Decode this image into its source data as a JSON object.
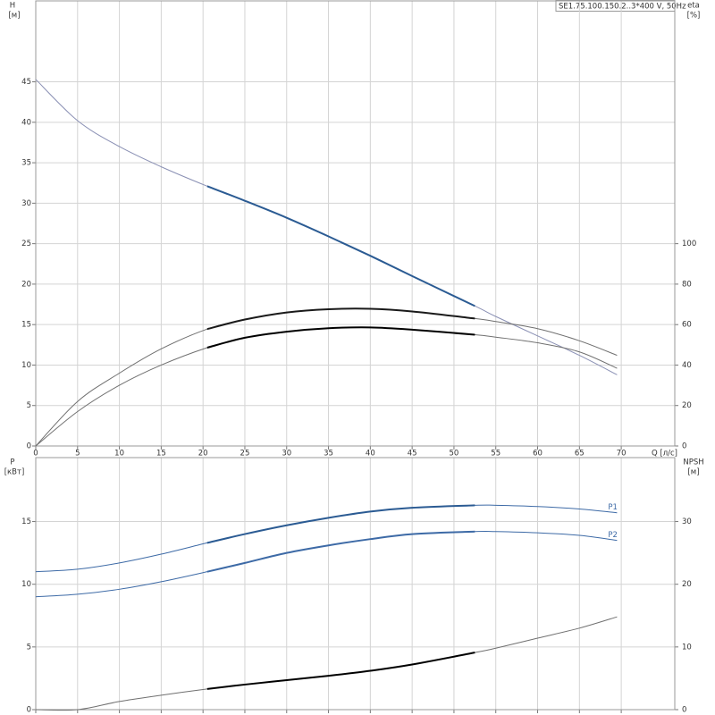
{
  "header": {
    "model": "SE1.75.100.150.2..3*400 V, 50Hz"
  },
  "chart_data": [
    {
      "type": "line",
      "y_label": "H",
      "y_unit": "[м]",
      "y2_label": "eta",
      "y2_unit": "[%]",
      "x_label": "Q [л/с]",
      "x": [
        0,
        5,
        10,
        15,
        20.5,
        25,
        30,
        35,
        40,
        45,
        52.5,
        55,
        60,
        65,
        69.5
      ],
      "xlim": [
        0,
        76.4
      ],
      "xticks": [
        0,
        5,
        10,
        15,
        20,
        25,
        30,
        35,
        40,
        45,
        50,
        55,
        60,
        65,
        70
      ],
      "ylim": [
        0,
        55
      ],
      "yticks": [
        0,
        5,
        10,
        15,
        20,
        25,
        30,
        35,
        40,
        45
      ],
      "y2lim": [
        0,
        220
      ],
      "y2ticks": [
        0,
        20,
        40,
        60,
        80,
        100
      ],
      "grid": true,
      "highlight_xlim": [
        20.5,
        52.5
      ],
      "series": [
        {
          "color": "#8a90b4",
          "highlight_color": "#2b5b93",
          "axis": "y",
          "values": [
            45.3,
            40.2,
            37,
            34.5,
            32.1,
            30.3,
            28.2,
            25.9,
            23.5,
            21,
            17.3,
            16,
            13.6,
            11.2,
            8.8
          ]
        },
        {
          "color": "#707070",
          "highlight_color": "#1a1a1a",
          "axis": "y2",
          "values": [
            0,
            22,
            36,
            48,
            57.8,
            62.5,
            66,
            67.6,
            67.8,
            66.5,
            63,
            61.5,
            58,
            52,
            44.8
          ]
        },
        {
          "color": "#707070",
          "highlight_color": "#000000",
          "axis": "y2",
          "values": [
            0,
            17,
            30,
            40,
            48.6,
            53.5,
            56.5,
            58.2,
            58.6,
            57.5,
            55,
            53.8,
            51,
            46.5,
            38.4
          ]
        }
      ]
    },
    {
      "type": "line",
      "y_label": "P",
      "y_unit": "[кВт]",
      "y2_label": "NPSH",
      "y2_unit": "[м]",
      "x": [
        0,
        5,
        10,
        15,
        20.5,
        25,
        30,
        35,
        40,
        45,
        52.5,
        55,
        60,
        65,
        69.5
      ],
      "xlim": [
        0,
        76.4
      ],
      "xticks": [
        0,
        5,
        10,
        15,
        20,
        25,
        30,
        35,
        40,
        45,
        50,
        55,
        60,
        65,
        70
      ],
      "ylim": [
        0,
        20.1
      ],
      "yticks": [
        0,
        5,
        10,
        15
      ],
      "y2lim": [
        0,
        40.2
      ],
      "y2ticks": [
        0,
        10,
        20,
        30
      ],
      "grid": true,
      "highlight_xlim": [
        20.5,
        52.5
      ],
      "series": [
        {
          "name": "P1",
          "color": "#3d6aa6",
          "highlight_color": "#2b5b93",
          "axis": "y",
          "values": [
            11,
            11.2,
            11.7,
            12.4,
            13.3,
            14,
            14.7,
            15.3,
            15.8,
            16.1,
            16.3,
            16.3,
            16.2,
            16,
            15.7
          ]
        },
        {
          "name": "P2",
          "color": "#3d6aa6",
          "highlight_color": "#3d6aa6",
          "axis": "y",
          "values": [
            9,
            9.2,
            9.6,
            10.2,
            11,
            11.7,
            12.5,
            13.1,
            13.6,
            14,
            14.2,
            14.2,
            14.1,
            13.9,
            13.5
          ]
        },
        {
          "color": "#707070",
          "highlight_color": "#000000",
          "axis": "y2",
          "values": [
            0,
            0,
            1.3,
            2.3,
            3.3,
            4,
            4.7,
            5.4,
            6.2,
            7.2,
            9.1,
            9.8,
            11.4,
            13,
            14.8
          ]
        }
      ]
    }
  ]
}
